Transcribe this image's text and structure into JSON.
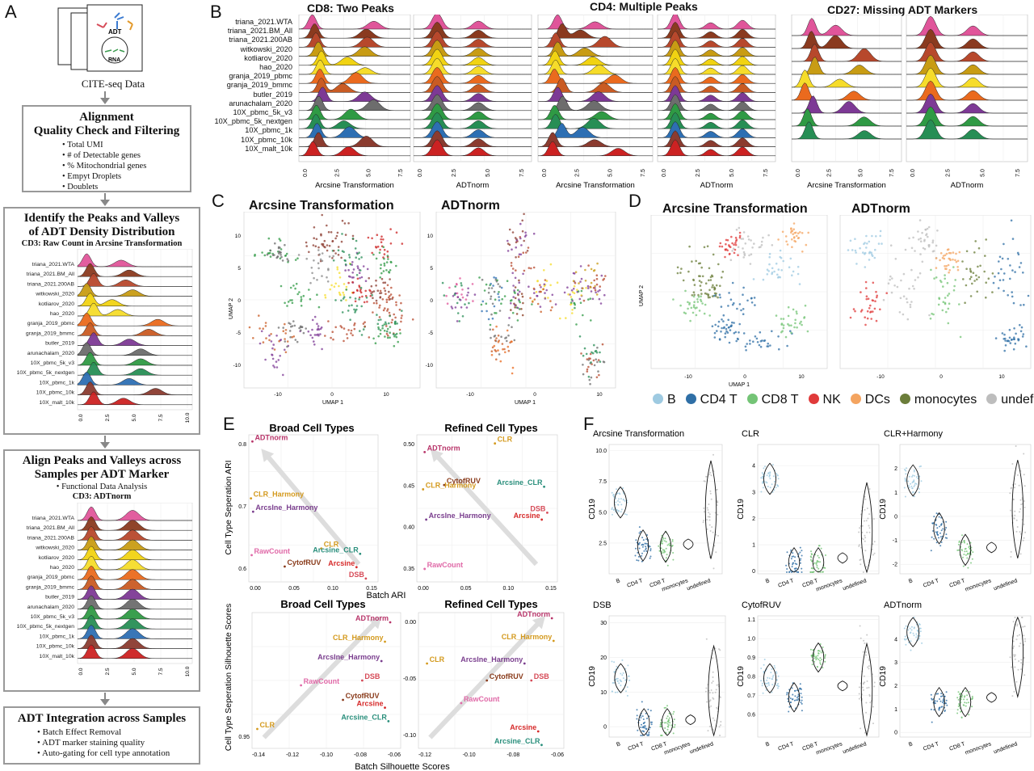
{
  "panel_letters": [
    "A",
    "B",
    "C",
    "D",
    "E",
    "F"
  ],
  "samples": [
    "triana_2021.WTA",
    "triana_2021.BM_All",
    "triana_2021.200AB",
    "witkowski_2020",
    "kotliarov_2020",
    "hao_2020",
    "granja_2019_pbmc",
    "granja_2019_bmmc",
    "butler_2019",
    "arunachalam_2020",
    "10X_pbmc_5k_v3",
    "10X_pbmc_5k_nextgen",
    "10X_pbmc_1k",
    "10X_pbmc_10k",
    "10X_malt_10k"
  ],
  "sample_colors": [
    "#e0559a",
    "#8a3a1f",
    "#b7482c",
    "#c89c14",
    "#f1d312",
    "#f6dc2a",
    "#ea6a1e",
    "#c95b23",
    "#7d3995",
    "#6d6d6d",
    "#2f9a44",
    "#278e55",
    "#2d6fb3",
    "#8b3b2f",
    "#cc2222"
  ],
  "panel_a": {
    "cite_label": "CITE-seq Data",
    "doc_adt": "ADT",
    "doc_rna": "RNA",
    "box1_title": [
      "Alignment",
      "Quality Check and Filtering"
    ],
    "box1_bullets": [
      "• Total UMI",
      "• # of Detectable genes",
      "• % Mitochondrial genes",
      "• Empyt Droplets",
      "• Doublets"
    ],
    "box2_title": [
      "Identify the Peaks and Valleys",
      "of ADT Density Distribution"
    ],
    "box2_sub": "CD3: Raw Count in Arcsine Transformation",
    "box2_ticks": [
      "0.0",
      "2.5",
      "5.0",
      "7.5",
      "10.0"
    ],
    "box3_title": [
      "Align Peaks and Valleys across",
      "Samples per ADT Marker"
    ],
    "box3_bullet": "• Functional Data Analysis",
    "box3_sub": "CD3: ADTnorm",
    "box3_ticks": [
      "0.0",
      "2.5",
      "5.0",
      "7.5",
      "10.0"
    ],
    "box4_title": "ADT Integration across Samples",
    "box4_bullets": [
      "• Batch Effect Removal",
      "• ADT marker staining quality",
      "• Auto-gating for cell type annotation"
    ]
  },
  "panel_b": {
    "titles": [
      "CD8: Two Peaks",
      "CD4: Multiple Peaks",
      "CD27: Missing ADT Markers"
    ],
    "xlabel_left": "Arcsine Transformation",
    "xlabel_right": "ADTnorm",
    "ticks": [
      "0.0",
      "2.5",
      "5.0",
      "7.5"
    ]
  },
  "panel_c": {
    "titles": [
      "Arcsine Transformation",
      "ADTnorm"
    ],
    "xlabel": "UMAP 1",
    "ylabel": "UMAP 2",
    "xticks": [
      "-10",
      "0",
      "10"
    ],
    "yticks": [
      "10",
      "5",
      "0",
      "-5",
      "-10"
    ]
  },
  "panel_d": {
    "titles": [
      "Arcsine Transformation",
      "ADTnorm"
    ],
    "xlabel": "UMAP 1",
    "ylabel": "UMAP 2",
    "xticks": [
      "-10",
      "0",
      "10"
    ],
    "legend": [
      {
        "name": "B",
        "color": "#9ecae1"
      },
      {
        "name": "CD4 T",
        "color": "#2f6fa6"
      },
      {
        "name": "CD8 T",
        "color": "#74c476"
      },
      {
        "name": "NK",
        "color": "#e03a3a"
      },
      {
        "name": "DCs",
        "color": "#f4a460"
      },
      {
        "name": "monocytes",
        "color": "#6b7d3a"
      },
      {
        "name": "undefined",
        "color": "#bdbdbd"
      }
    ]
  },
  "panel_e": {
    "titles": [
      "Broad Cell Types",
      "Refined Cell Types",
      "Broad Cell Types",
      "Refined Cell Types"
    ],
    "ylabel_top": "Cell Type Seperation ARI",
    "xlabel_top": "Batch ARI",
    "ylabel_bottom": "Cell Type Seperation Silhouette Scores",
    "xlabel_bottom": "Batch Silhouette Scores"
  },
  "panel_f": {
    "titles": [
      "Arcsine Transformation",
      "CLR",
      "CLR+Harmony",
      "DSB",
      "CytofRUV",
      "ADTnorm"
    ],
    "ylabel": "CD19",
    "categories": [
      "B",
      "CD4 T",
      "CD8 T",
      "monocytes",
      "undefined"
    ]
  },
  "chart_data": [
    {
      "type": "scatter",
      "title": "Broad Cell Types",
      "xlabel": "Batch ARI",
      "ylabel": "Cell Type Seperation ARI",
      "xlim": [
        0,
        0.18
      ],
      "ylim": [
        0.6,
        0.82
      ],
      "xticks": [
        "0.00",
        "0.05",
        "0.10",
        "0.15"
      ],
      "yticks": [
        "0.8",
        "0.7",
        "0.6"
      ],
      "points": [
        {
          "label": "ADTnorm",
          "x": 0.005,
          "y": 0.81,
          "color": "#b8356a"
        },
        {
          "label": "CLR_Harmony",
          "x": 0.003,
          "y": 0.725,
          "color": "#d49a1e"
        },
        {
          "label": "ArcsIne_Harmony",
          "x": 0.006,
          "y": 0.705,
          "color": "#7a3e8e"
        },
        {
          "label": "CLR",
          "x": 0.101,
          "y": 0.65,
          "color": "#d49a1e"
        },
        {
          "label": "Arcsine_CLR",
          "x": 0.155,
          "y": 0.642,
          "color": "#2a8f7c"
        },
        {
          "label": "RawCount",
          "x": 0.004,
          "y": 0.64,
          "color": "#e06aa8"
        },
        {
          "label": "CytofRUV",
          "x": 0.05,
          "y": 0.623,
          "color": "#8a3c1c"
        },
        {
          "label": "Arcsine",
          "x": 0.15,
          "y": 0.622,
          "color": "#d62a2a"
        },
        {
          "label": "DSB",
          "x": 0.163,
          "y": 0.605,
          "color": "#d64a57"
        }
      ]
    },
    {
      "type": "scatter",
      "title": "Refined Cell Types",
      "xlim": [
        0,
        0.18
      ],
      "ylim": [
        0.34,
        0.51
      ],
      "xticks": [
        "0.00",
        "0.05",
        "0.10",
        "0.15"
      ],
      "yticks": [
        "0.50",
        "0.45",
        "0.40",
        "0.35"
      ],
      "points": [
        {
          "label": "CLR",
          "x": 0.1,
          "y": 0.5,
          "color": "#d49a1e"
        },
        {
          "label": "ADTnorm",
          "x": 0.01,
          "y": 0.49,
          "color": "#b8356a"
        },
        {
          "label": "CytofRUV",
          "x": 0.035,
          "y": 0.452,
          "color": "#8a3c1c"
        },
        {
          "label": "CLR_Harmony",
          "x": 0.008,
          "y": 0.447,
          "color": "#d49a1e"
        },
        {
          "label": "Arcsine_CLR",
          "x": 0.163,
          "y": 0.45,
          "color": "#2a8f7c"
        },
        {
          "label": "DSB",
          "x": 0.167,
          "y": 0.42,
          "color": "#d64a57"
        },
        {
          "label": "Arcsine",
          "x": 0.16,
          "y": 0.412,
          "color": "#d62a2a"
        },
        {
          "label": "ArcsIne_Harmony",
          "x": 0.012,
          "y": 0.412,
          "color": "#7a3e8e"
        },
        {
          "label": "RawCount",
          "x": 0.01,
          "y": 0.355,
          "color": "#e06aa8"
        }
      ]
    },
    {
      "type": "scatter",
      "title": "Broad Cell Types",
      "xlabel": "Batch Silhouette Scores",
      "ylabel": "Cell Type Seperation Silhouette Scores",
      "xlim": [
        -0.14,
        -0.055
      ],
      "ylim": [
        0.92,
        1.06
      ],
      "xticks": [
        "-0.14",
        "-0.12",
        "-0.10",
        "-0.08",
        "-0.06"
      ],
      "yticks": [
        "0.95"
      ],
      "points": [
        {
          "label": "ADTnorm",
          "x": -0.061,
          "y": 1.05,
          "color": "#b8356a"
        },
        {
          "label": "CLR_Harmony",
          "x": -0.064,
          "y": 1.03,
          "color": "#d49a1e"
        },
        {
          "label": "ArcsIne_Harmony",
          "x": -0.066,
          "y": 1.01,
          "color": "#7a3e8e"
        },
        {
          "label": "RawCount",
          "x": -0.112,
          "y": 0.985,
          "color": "#e06aa8"
        },
        {
          "label": "DSB",
          "x": -0.077,
          "y": 0.99,
          "color": "#d64a57"
        },
        {
          "label": "CytofRUV",
          "x": -0.088,
          "y": 0.97,
          "color": "#8a3c1c"
        },
        {
          "label": "Arcsine",
          "x": -0.064,
          "y": 0.962,
          "color": "#d62a2a"
        },
        {
          "label": "Arcsine_CLR",
          "x": -0.062,
          "y": 0.948,
          "color": "#2a8f7c"
        },
        {
          "label": "CLR",
          "x": -0.137,
          "y": 0.94,
          "color": "#d49a1e"
        }
      ]
    },
    {
      "type": "scatter",
      "title": "Refined Cell Types",
      "xlim": [
        -0.14,
        -0.055
      ],
      "ylim": [
        -0.115,
        0.005
      ],
      "xticks": [
        "-0.12",
        "-0.10",
        "-0.08",
        "-0.06"
      ],
      "yticks": [
        "0.00",
        "-0.05",
        "-0.10"
      ],
      "points": [
        {
          "label": "ADTnorm",
          "x": -0.062,
          "y": 0.0,
          "color": "#b8356a"
        },
        {
          "label": "CLR_Harmony",
          "x": -0.061,
          "y": -0.02,
          "color": "#d49a1e"
        },
        {
          "label": "CLR",
          "x": -0.135,
          "y": -0.04,
          "color": "#d49a1e"
        },
        {
          "label": "ArcsIne_Harmony",
          "x": -0.078,
          "y": -0.04,
          "color": "#7a3e8e"
        },
        {
          "label": "CytofRUV",
          "x": -0.1,
          "y": -0.055,
          "color": "#8a3c1c"
        },
        {
          "label": "DSB",
          "x": -0.074,
          "y": -0.055,
          "color": "#d64a57"
        },
        {
          "label": "RawCount",
          "x": -0.115,
          "y": -0.075,
          "color": "#e06aa8"
        },
        {
          "label": "Arcsine",
          "x": -0.07,
          "y": -0.1,
          "color": "#d62a2a"
        },
        {
          "label": "Arcsine_CLR",
          "x": -0.068,
          "y": -0.112,
          "color": "#2a8f7c"
        }
      ]
    },
    {
      "type": "violin",
      "title": "Arcsine Transformation",
      "ylabel": "CD19",
      "categories": [
        "B",
        "CD4 T",
        "CD8 T",
        "monocytes",
        "undefined"
      ],
      "ylim": [
        0,
        10.5
      ],
      "yticks": [
        "2.5",
        "5.0",
        "7.5",
        "10.0"
      ],
      "medians": [
        5.8,
        2.3,
        2.2,
        2.4,
        5.2
      ]
    },
    {
      "type": "violin",
      "title": "CLR",
      "ylabel": "CD19",
      "categories": [
        "B",
        "CD4 T",
        "CD8 T",
        "monocytes",
        "undefined"
      ],
      "ylim": [
        -0.1,
        4.8
      ],
      "yticks": [
        "0",
        "1",
        "2",
        "3",
        "4"
      ],
      "medians": [
        3.5,
        0.3,
        0.3,
        0.5,
        1.5
      ]
    },
    {
      "type": "violin",
      "title": "CLR+Harmony",
      "ylabel": "CD19",
      "categories": [
        "B",
        "CD4 T",
        "CD8 T",
        "monocytes",
        "undefined"
      ],
      "ylim": [
        -2.4,
        3
      ],
      "yticks": [
        "-2",
        "-1",
        "0",
        "1",
        "2"
      ],
      "medians": [
        1.5,
        -0.5,
        -1.4,
        -1.3,
        0.3
      ]
    },
    {
      "type": "violin",
      "title": "DSB",
      "ylabel": "CD19",
      "categories": [
        "B",
        "CD4 T",
        "CD8 T",
        "monocytes",
        "undefined"
      ],
      "ylim": [
        -3,
        32
      ],
      "yticks": [
        "0",
        "10",
        "20",
        "30"
      ],
      "medians": [
        14,
        1,
        1,
        2,
        10
      ]
    },
    {
      "type": "violin",
      "title": "CytofRUV",
      "ylabel": "CD19",
      "categories": [
        "B",
        "CD4 T",
        "CD8 T",
        "monocytes",
        "undefined"
      ],
      "ylim": [
        0.48,
        1.12
      ],
      "yticks": [
        "0.6",
        "0.7",
        "0.8",
        "0.9",
        "1.0",
        "1.1"
      ],
      "medians": [
        0.79,
        0.69,
        0.9,
        0.75,
        0.73
      ]
    },
    {
      "type": "violin",
      "title": "ADTnorm",
      "ylabel": "CD19",
      "categories": [
        "B",
        "CD4 T",
        "CD8 T",
        "monocytes",
        "undefined"
      ],
      "ylim": [
        -0.2,
        5
      ],
      "yticks": [
        "0",
        "1",
        "2",
        "3",
        "4"
      ],
      "medians": [
        4.3,
        1.3,
        1.3,
        1.5,
        3.5
      ]
    }
  ]
}
